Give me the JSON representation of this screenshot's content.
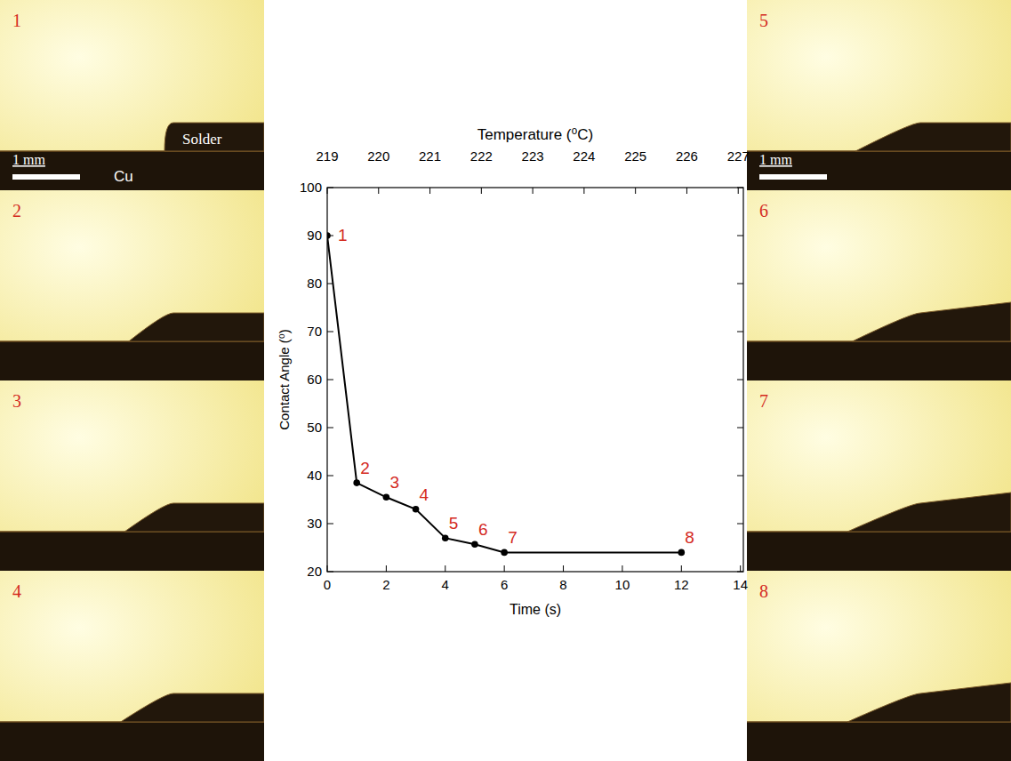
{
  "chart_data": {
    "type": "line",
    "x": [
      0,
      1,
      2,
      3,
      4,
      5,
      6,
      12
    ],
    "values": [
      90,
      38.5,
      35.5,
      33,
      27,
      25.7,
      24,
      24
    ],
    "point_labels": [
      "1",
      "2",
      "3",
      "4",
      "5",
      "6",
      "7",
      "8"
    ],
    "xlabel": "Time (s)",
    "ylabel": "Contact Angle (⁰)",
    "x2label": "Temperature (⁰C)",
    "xlim": [
      0,
      14.1
    ],
    "xticks": [
      0,
      2,
      4,
      6,
      8,
      10,
      12,
      14
    ],
    "ylim": [
      20,
      100
    ],
    "yticks": [
      20,
      30,
      40,
      50,
      60,
      70,
      80,
      90,
      100
    ],
    "x2lim": [
      219,
      227.1
    ],
    "x2ticks": [
      219,
      220,
      221,
      222,
      223,
      224,
      225,
      226,
      227
    ],
    "color": "#000000",
    "marker": "circle",
    "line_style": "solid",
    "grid": false
  },
  "photos": {
    "solder_label": "Solder",
    "substrate_label": "Cu",
    "scale_bar": "1 mm"
  }
}
